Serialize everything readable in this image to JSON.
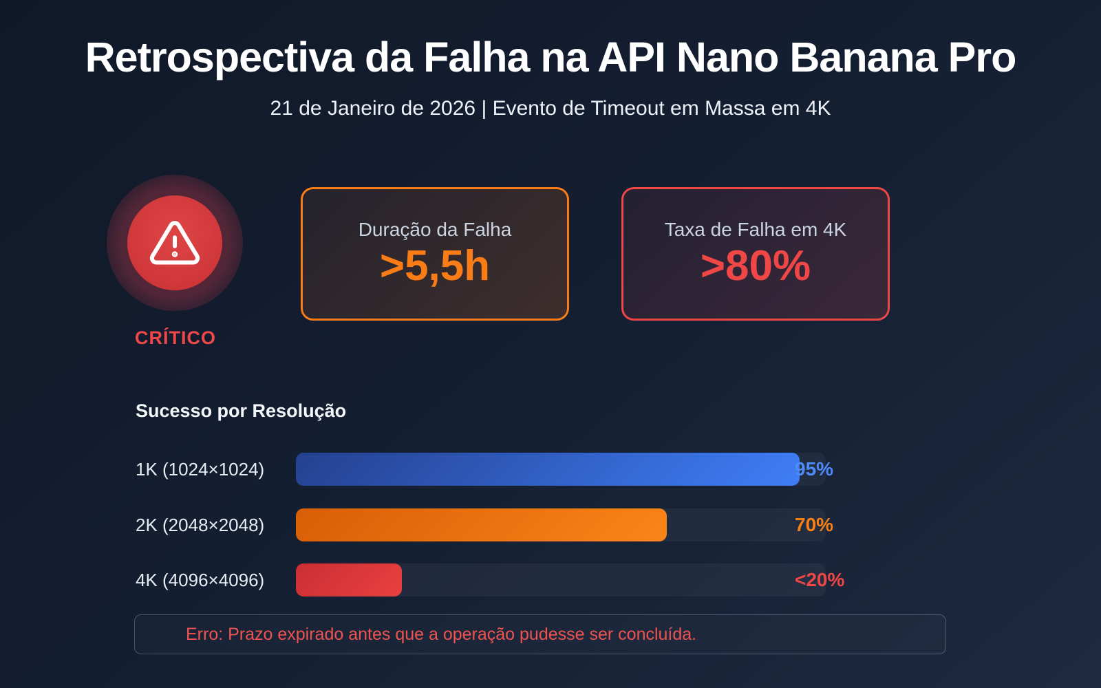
{
  "header": {
    "title": "Retrospectiva da Falha na API Nano Banana Pro",
    "subtitle": "21 de Janeiro de 2026 | Evento de Timeout em Massa em 4K"
  },
  "status_badge": {
    "label": "CRÍTICO",
    "icon": "alert-triangle-icon",
    "color": "#f04848"
  },
  "stat_cards": [
    {
      "label": "Duração da Falha",
      "value": ">5,5h",
      "accent_color": "#f97c16"
    },
    {
      "label": "Taxa de Falha em 4K",
      "value": ">80%",
      "accent_color": "#ef4646"
    }
  ],
  "chart_data": {
    "type": "bar",
    "orientation": "horizontal",
    "title": "Sucesso por Resolução",
    "categories": [
      "1K (1024×1024)",
      "2K (2048×2048)",
      "4K (4096×4096)"
    ],
    "values": [
      95,
      70,
      20
    ],
    "value_labels": [
      "95%",
      "70%",
      "<20%"
    ],
    "xlim": [
      0,
      100
    ],
    "grid": false,
    "legend": false,
    "bar_gradients": [
      [
        "#24418f",
        "#3f7ef8"
      ],
      [
        "#d85e07",
        "#fb8518"
      ],
      [
        "#c92f33",
        "#ea4040"
      ]
    ],
    "value_label_colors": [
      "#4d8bfa",
      "#f98114",
      "#ef4646"
    ]
  },
  "error_banner": {
    "text": "Erro: Prazo expirado antes que a operação pudesse ser concluída.",
    "text_color": "#ef5350"
  },
  "theme": {
    "background_top": "#101928",
    "background_bottom": "#1e2940",
    "card_label_color": "#cbd5e1",
    "track_color": "rgba(255,255,255,0.045)"
  }
}
